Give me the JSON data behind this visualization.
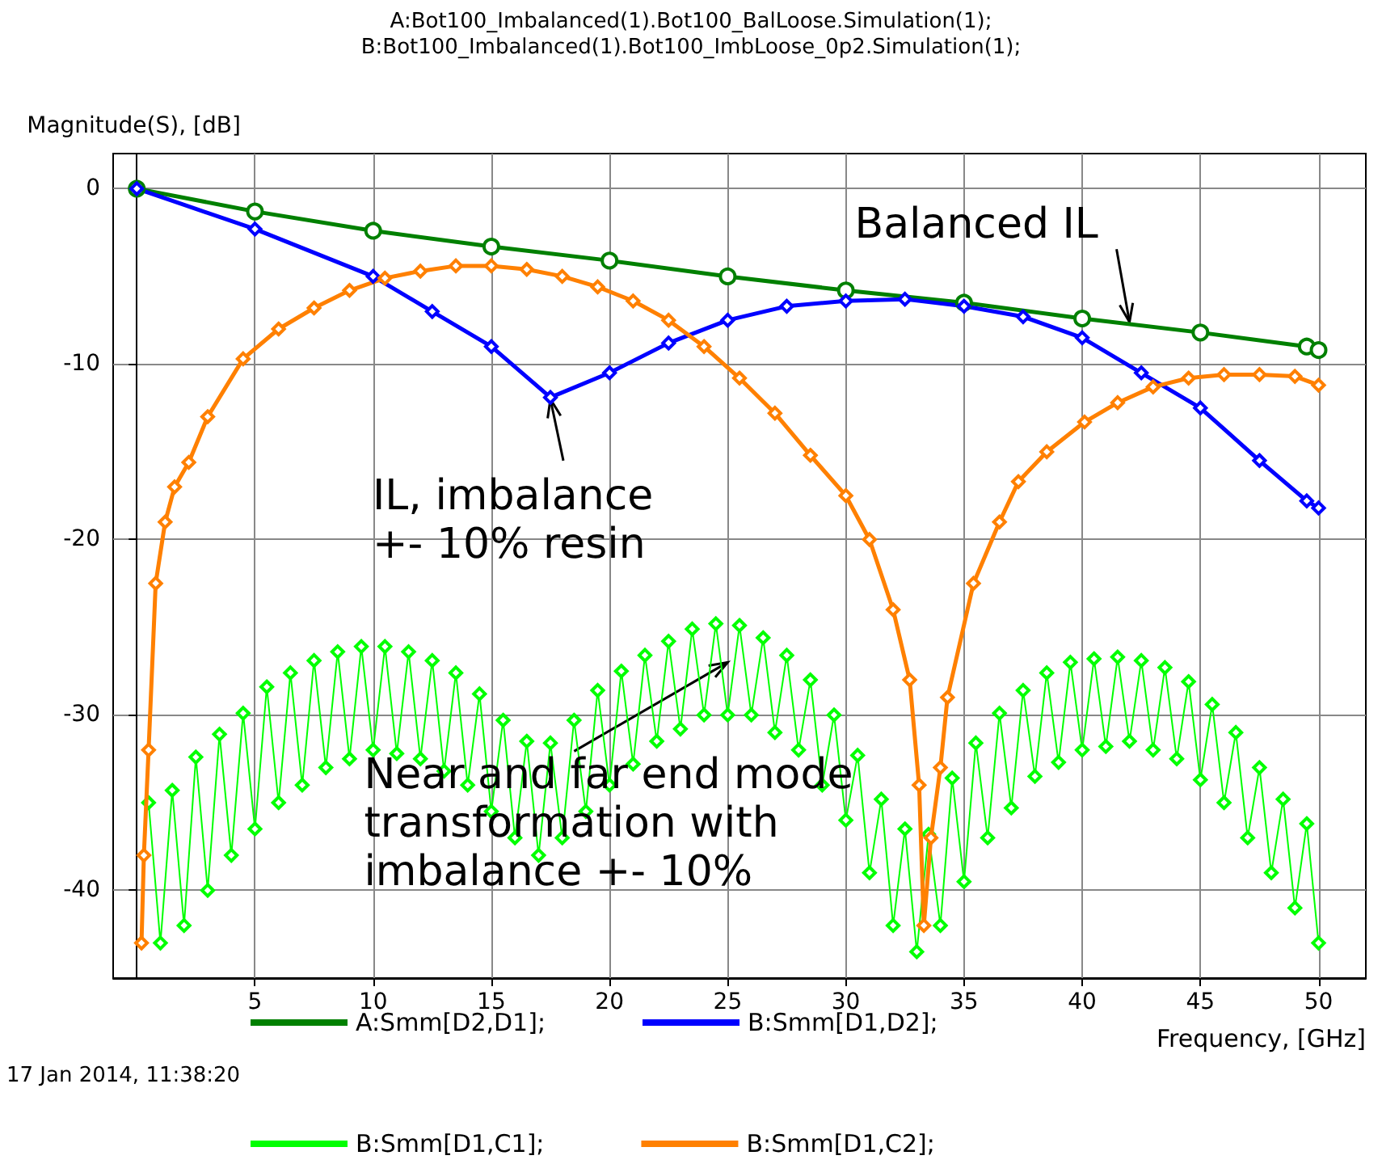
{
  "chart_data": {
    "type": "line",
    "title": "A:Bot100_Imbalanced(1).Bot100_BalLoose.Simulation(1);",
    "subtitle": "B:Bot100_Imbalanced(1).Bot100_ImbLoose_0p2.Simulation(1);",
    "xlabel": "Frequency, [GHz]",
    "ylabel": "Magnitude(S), [dB]",
    "xlim": [
      -1,
      52
    ],
    "ylim": [
      -45,
      2
    ],
    "xticks": [
      5,
      10,
      15,
      20,
      25,
      30,
      35,
      40,
      45,
      50
    ],
    "yticks": [
      -40,
      -30,
      -20,
      -10,
      0
    ],
    "grid": true,
    "legend": "bottom",
    "line_style": "solid",
    "series": [
      {
        "name": "A:Smm[D2,D1];",
        "color": "#008000",
        "marker": "circle",
        "x": [
          0,
          5,
          10,
          15,
          20,
          25,
          30,
          35,
          40,
          45,
          49.5,
          50
        ],
        "values": [
          0,
          -1.3,
          -2.4,
          -3.3,
          -4.1,
          -5,
          -5.8,
          -6.5,
          -7.4,
          -8.2,
          -9,
          -9.2
        ]
      },
      {
        "name": "B:Smm[D1,D2];",
        "color": "#0000ff",
        "marker": "diamond",
        "x": [
          0,
          5,
          10,
          12.5,
          15,
          17.5,
          20,
          22.5,
          25,
          27.5,
          30,
          32.5,
          35,
          37.5,
          40,
          42.5,
          45,
          47.5,
          49.5,
          50
        ],
        "values": [
          0,
          -2.3,
          -5,
          -7,
          -9,
          -11.9,
          -10.5,
          -8.8,
          -7.5,
          -6.7,
          -6.4,
          -6.3,
          -6.7,
          -7.3,
          -8.5,
          -10.5,
          -12.5,
          -15.5,
          -17.8,
          -18.2
        ]
      },
      {
        "name": "B:Smm[D1,C1];",
        "color": "#00ff00",
        "marker": "diamond",
        "x": [
          0.5,
          1,
          1.5,
          2,
          2.5,
          3,
          3.5,
          4,
          4.5,
          5,
          5.5,
          6,
          6.5,
          7,
          7.5,
          8,
          8.5,
          9,
          9.5,
          10,
          10.5,
          11,
          11.5,
          12,
          12.5,
          13,
          13.5,
          14,
          14.5,
          15,
          15.5,
          16,
          16.5,
          17,
          17.5,
          18,
          18.5,
          19,
          19.5,
          20,
          20.5,
          21,
          21.5,
          22,
          22.5,
          23,
          23.5,
          24,
          24.5,
          25,
          25.5,
          26,
          26.5,
          27,
          27.5,
          28,
          28.5,
          29,
          29.5,
          30,
          30.5,
          31,
          31.5,
          32,
          32.5,
          33,
          33.5,
          34,
          34.5,
          35,
          35.5,
          36,
          36.5,
          37,
          37.5,
          38,
          38.5,
          39,
          39.5,
          40,
          40.5,
          41,
          41.5,
          42,
          42.5,
          43,
          43.5,
          44,
          44.5,
          45,
          45.5,
          46,
          46.5,
          47,
          47.5,
          48,
          48.5,
          49,
          49.5,
          50
        ],
        "values": [
          -35,
          -43,
          -34.3,
          -42,
          -32.4,
          -40,
          -31.1,
          -38,
          -29.9,
          -36.5,
          -28.4,
          -35,
          -27.6,
          -34,
          -26.9,
          -33,
          -26.4,
          -32.5,
          -26.1,
          -32,
          -26.1,
          -32.2,
          -26.4,
          -32.5,
          -26.9,
          -33.2,
          -27.6,
          -34,
          -28.8,
          -35.5,
          -30.3,
          -37,
          -31.5,
          -38,
          -31.6,
          -37,
          -30.3,
          -35.5,
          -28.6,
          -34,
          -27.5,
          -32.8,
          -26.6,
          -31.5,
          -25.8,
          -30.8,
          -25.1,
          -30,
          -24.8,
          -30,
          -24.9,
          -30,
          -25.6,
          -31,
          -26.6,
          -32,
          -28,
          -34,
          -30,
          -36,
          -32.3,
          -39,
          -34.8,
          -42,
          -36.5,
          -43.5,
          -36.8,
          -42,
          -33.6,
          -39.5,
          -31.6,
          -37,
          -29.9,
          -35.3,
          -28.6,
          -33.5,
          -27.6,
          -32.7,
          -27,
          -32,
          -26.8,
          -31.8,
          -26.7,
          -31.5,
          -26.9,
          -32,
          -27.3,
          -32.5,
          -28.1,
          -33.7,
          -29.4,
          -35,
          -31,
          -37,
          -33,
          -39,
          -34.8,
          -41,
          -36.2,
          -43
        ]
      },
      {
        "name": "B:Smm[D1,C2];",
        "color": "#ff8000",
        "marker": "diamond",
        "x": [
          0.2,
          0.3,
          0.5,
          0.8,
          1.2,
          1.6,
          2.2,
          3,
          4.5,
          6,
          7.5,
          9,
          10.5,
          12,
          13.5,
          15,
          16.5,
          18,
          19.5,
          21,
          22.5,
          24,
          25.5,
          27,
          28.5,
          30,
          31,
          32,
          32.7,
          33.1,
          33.3,
          33.6,
          34,
          34.3,
          35.4,
          36.5,
          37.3,
          38.5,
          40.1,
          41.5,
          43,
          44.5,
          46,
          47.5,
          49,
          50
        ],
        "values": [
          -43,
          -38,
          -32,
          -22.5,
          -19,
          -17,
          -15.6,
          -13,
          -9.7,
          -8,
          -6.8,
          -5.8,
          -5.1,
          -4.7,
          -4.4,
          -4.4,
          -4.6,
          -5,
          -5.6,
          -6.4,
          -7.5,
          -9,
          -10.8,
          -12.8,
          -15.2,
          -17.5,
          -20,
          -24,
          -28,
          -34,
          -42,
          -37,
          -33,
          -29,
          -22.5,
          -19,
          -16.7,
          -15,
          -13.3,
          -12.2,
          -11.3,
          -10.8,
          -10.6,
          -10.6,
          -10.7,
          -11.2
        ]
      }
    ],
    "annotations": [
      {
        "text": "Balanced IL",
        "x": 42,
        "y": -7.6
      },
      {
        "text": "IL, imbalance\n+- 10% resin",
        "x": 17.5,
        "y": -12
      },
      {
        "text": "Near and far end mode\ntransformation with\nimbalance +- 10%",
        "x": 25,
        "y": -27
      },
      "17 Jan 2014, 11:38:20"
    ]
  }
}
